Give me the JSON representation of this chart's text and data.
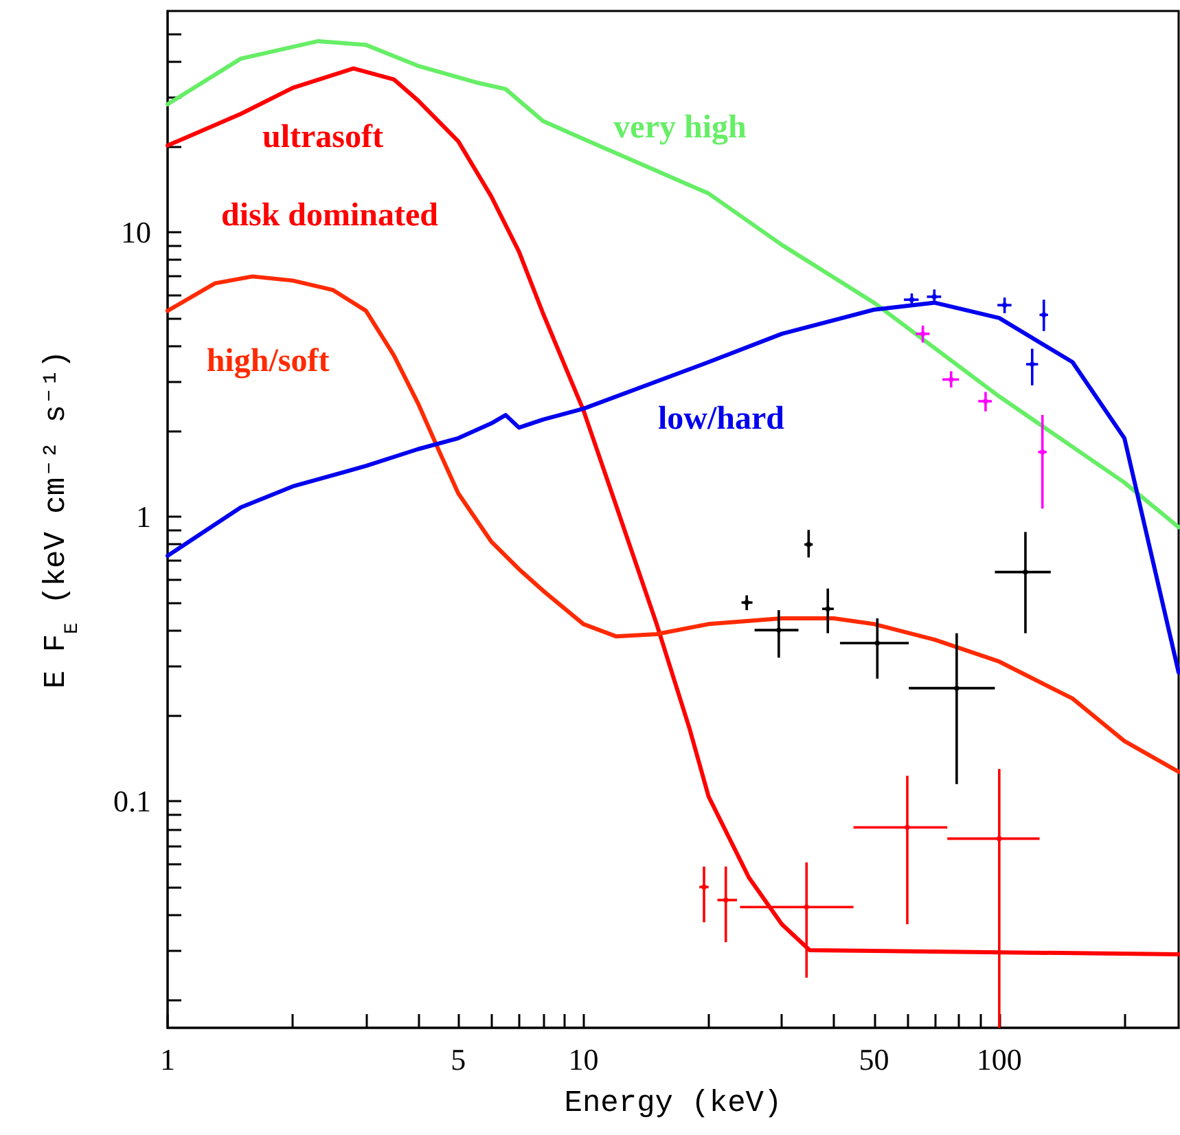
{
  "chart_data": {
    "type": "line",
    "xlabel": "Energy (keV)",
    "ylabel": "E F$_{E}$ (keV cm⁻² s⁻¹)",
    "log": "xy",
    "grid": false,
    "legend": false,
    "xlim": [
      1,
      270
    ],
    "ylim": [
      0.016,
      60
    ],
    "xticks": [
      1,
      {
        "value": 2,
        "label": null
      },
      {
        "value": 3,
        "label": null
      },
      {
        "value": 4,
        "label": null
      },
      5,
      {
        "value": 6,
        "label": null
      },
      {
        "value": 7,
        "label": null
      },
      {
        "value": 8,
        "label": null
      },
      {
        "value": 9,
        "label": null
      },
      10,
      {
        "value": 20,
        "label": null
      },
      {
        "value": 30,
        "label": null
      },
      {
        "value": 40,
        "label": null
      },
      50,
      {
        "value": 60,
        "label": null
      },
      {
        "value": 70,
        "label": null
      },
      {
        "value": 80,
        "label": null
      },
      {
        "value": 90,
        "label": null
      },
      100,
      {
        "value": 200,
        "label": null
      }
    ],
    "yticks": [
      {
        "value": 0.02,
        "label": null
      },
      {
        "value": 0.03,
        "label": null
      },
      {
        "value": 0.04,
        "label": null
      },
      {
        "value": 0.05,
        "label": null
      },
      {
        "value": 0.06,
        "label": null
      },
      {
        "value": 0.07,
        "label": null
      },
      {
        "value": 0.08,
        "label": null
      },
      {
        "value": 0.09,
        "label": null
      },
      0.1,
      {
        "value": 0.2,
        "label": null
      },
      {
        "value": 0.3,
        "label": null
      },
      {
        "value": 0.4,
        "label": null
      },
      {
        "value": 0.5,
        "label": null
      },
      {
        "value": 0.6,
        "label": null
      },
      {
        "value": 0.7,
        "label": null
      },
      {
        "value": 0.8,
        "label": null
      },
      {
        "value": 0.9,
        "label": null
      },
      1,
      {
        "value": 2,
        "label": null
      },
      {
        "value": 3,
        "label": null
      },
      {
        "value": 4,
        "label": null
      },
      {
        "value": 5,
        "label": null
      },
      {
        "value": 6,
        "label": null
      },
      {
        "value": 7,
        "label": null
      },
      {
        "value": 8,
        "label": null
      },
      {
        "value": 9,
        "label": null
      },
      10,
      {
        "value": 20,
        "label": null
      },
      {
        "value": 30,
        "label": null
      },
      {
        "value": 40,
        "label": null
      },
      {
        "value": 50,
        "label": null
      }
    ],
    "series": [
      {
        "name": "very high",
        "color": "#66ee66",
        "x": [
          1,
          1.5,
          2.3,
          3,
          4,
          5.5,
          6.5,
          8,
          10,
          20,
          30,
          50,
          100,
          200,
          270
        ],
        "values": [
          28.2,
          40.8,
          47,
          45.6,
          38.5,
          33.7,
          31.9,
          24.6,
          21.3,
          13.7,
          9.04,
          5.66,
          2.65,
          1.32,
          0.92
        ]
      },
      {
        "name": "ultrasoft",
        "color": "#ff0000",
        "x": [
          1,
          1.5,
          2,
          2.8,
          3.5,
          4,
          5,
          6,
          7,
          8,
          10,
          12,
          15,
          18,
          20,
          25,
          30,
          35,
          270
        ],
        "values": [
          20.2,
          26.1,
          32.2,
          37.7,
          34.5,
          29.1,
          20.9,
          13.4,
          8.55,
          5.18,
          2.37,
          1.09,
          0.42,
          0.18,
          0.104,
          0.054,
          0.037,
          0.03,
          0.029
        ]
      },
      {
        "name": "high/soft",
        "color": "#ff2a00",
        "x": [
          1,
          1.3,
          1.6,
          2,
          2.5,
          3,
          3.5,
          4,
          4.5,
          5,
          6,
          7,
          8,
          10,
          12,
          15,
          20,
          30,
          40,
          50,
          70,
          100,
          150,
          200,
          270
        ],
        "values": [
          5.3,
          6.62,
          7.0,
          6.77,
          6.27,
          5.3,
          3.7,
          2.51,
          1.7,
          1.21,
          0.82,
          0.655,
          0.55,
          0.42,
          0.38,
          0.387,
          0.42,
          0.44,
          0.44,
          0.42,
          0.37,
          0.31,
          0.23,
          0.163,
          0.127
        ]
      },
      {
        "name": "low/hard",
        "color": "#0000ee",
        "x": [
          1,
          1.5,
          2,
          3,
          4,
          5,
          6,
          6.5,
          7,
          8,
          10,
          20,
          30,
          50,
          70,
          100,
          150,
          200,
          270
        ],
        "values": [
          0.73,
          1.08,
          1.28,
          1.51,
          1.73,
          1.89,
          2.13,
          2.28,
          2.06,
          2.2,
          2.4,
          3.5,
          4.4,
          5.35,
          5.66,
          5.0,
          3.5,
          1.89,
          0.284
        ]
      },
      {
        "type": "scatter",
        "color": "#000000",
        "x": [
          24.7,
          29.5,
          34.8,
          38.7,
          50.9,
          79,
          115.6
        ],
        "values": [
          0.5,
          0.4,
          0.8,
          0.475,
          0.36,
          0.25,
          0.64
        ],
        "errors": [
          [
            0.47,
            0.53
          ],
          [
            0.32,
            0.47
          ],
          [
            0.72,
            0.9
          ],
          [
            0.39,
            0.56
          ],
          [
            0.27,
            0.44
          ],
          [
            0.115,
            0.39
          ],
          [
            0.39,
            0.885
          ]
        ],
        "xerrors": [
          [
            24,
            25.5
          ],
          [
            25.8,
            32.9
          ],
          [
            34,
            35.6
          ],
          [
            37.5,
            40
          ],
          [
            41.4,
            60.6
          ],
          [
            60.6,
            97.6
          ],
          [
            97.6,
            133
          ]
        ]
      },
      {
        "type": "scatter",
        "color": "#ff0000",
        "x": [
          19.5,
          22,
          34.4,
          60.1,
          100
        ],
        "values": [
          0.05,
          0.045,
          0.0425,
          0.081,
          0.074
        ],
        "errors": [
          [
            0.0376,
            0.059
          ],
          [
            0.032,
            0.059
          ],
          [
            0.024,
            0.061
          ],
          [
            0.037,
            0.123
          ],
          [
            0.016,
            0.13
          ]
        ],
        "xerrors": [
          [
            19,
            20
          ],
          [
            21,
            23.4
          ],
          [
            23.8,
            44.6
          ],
          [
            44.6,
            75
          ],
          [
            75,
            125
          ]
        ]
      },
      {
        "type": "scatter",
        "color": "#0000ee",
        "x": [
          61.6,
          69.8,
          103,
          120,
          128
        ],
        "values": [
          5.8,
          5.94,
          5.55,
          3.44,
          5.13
        ],
        "errors": [
          [
            5.5,
            6.1
          ],
          [
            5.6,
            6.3
          ],
          [
            5.2,
            5.9
          ],
          [
            2.9,
            3.9
          ],
          [
            4.5,
            5.8
          ]
        ],
        "xerrors": [
          [
            59,
            64
          ],
          [
            67,
            72.5
          ],
          [
            99,
            107
          ],
          [
            116,
            124
          ],
          [
            125,
            131
          ]
        ]
      },
      {
        "type": "scatter",
        "color": "#ff00ff",
        "x": [
          65.5,
          76.6,
          92.7,
          127
        ],
        "values": [
          4.4,
          3.04,
          2.55,
          1.69
        ],
        "errors": [
          [
            4.1,
            4.7
          ],
          [
            2.85,
            3.25
          ],
          [
            2.35,
            2.75
          ],
          [
            1.07,
            2.28
          ]
        ],
        "xerrors": [
          [
            63,
            68
          ],
          [
            73,
            80
          ],
          [
            89,
            96
          ],
          [
            124,
            130
          ]
        ]
      }
    ],
    "annotations": [
      "disk dominated"
    ]
  }
}
